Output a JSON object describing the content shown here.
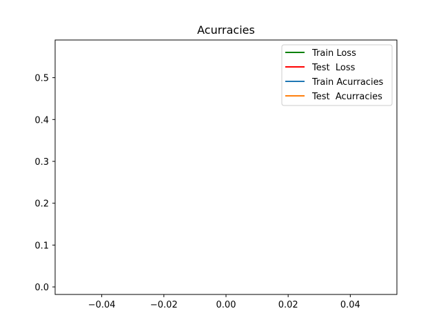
{
  "chart_data": {
    "type": "line",
    "title": "Acurracies",
    "xlabel": "",
    "ylabel": "",
    "xlim": [
      -0.055,
      0.055
    ],
    "ylim": [
      -0.018,
      0.59
    ],
    "x_ticks": [
      -0.04,
      -0.02,
      0.0,
      0.02,
      0.04
    ],
    "x_tick_labels": [
      "−0.04",
      "−0.02",
      "0.00",
      "0.02",
      "0.04"
    ],
    "y_ticks": [
      0.0,
      0.1,
      0.2,
      0.3,
      0.4,
      0.5
    ],
    "y_tick_labels": [
      "0.0",
      "0.1",
      "0.2",
      "0.3",
      "0.4",
      "0.5"
    ],
    "grid": false,
    "legend_position": "top-right",
    "series": [
      {
        "name": "Train Loss",
        "color": "#008000",
        "x": [],
        "y": []
      },
      {
        "name": "Test  Loss",
        "color": "#ff0000",
        "x": [],
        "y": []
      },
      {
        "name": "Train Acurracies",
        "color": "#1f77b4",
        "x": [],
        "y": []
      },
      {
        "name": "Test  Acurracies",
        "color": "#ff7f0e",
        "x": [],
        "y": []
      }
    ]
  }
}
